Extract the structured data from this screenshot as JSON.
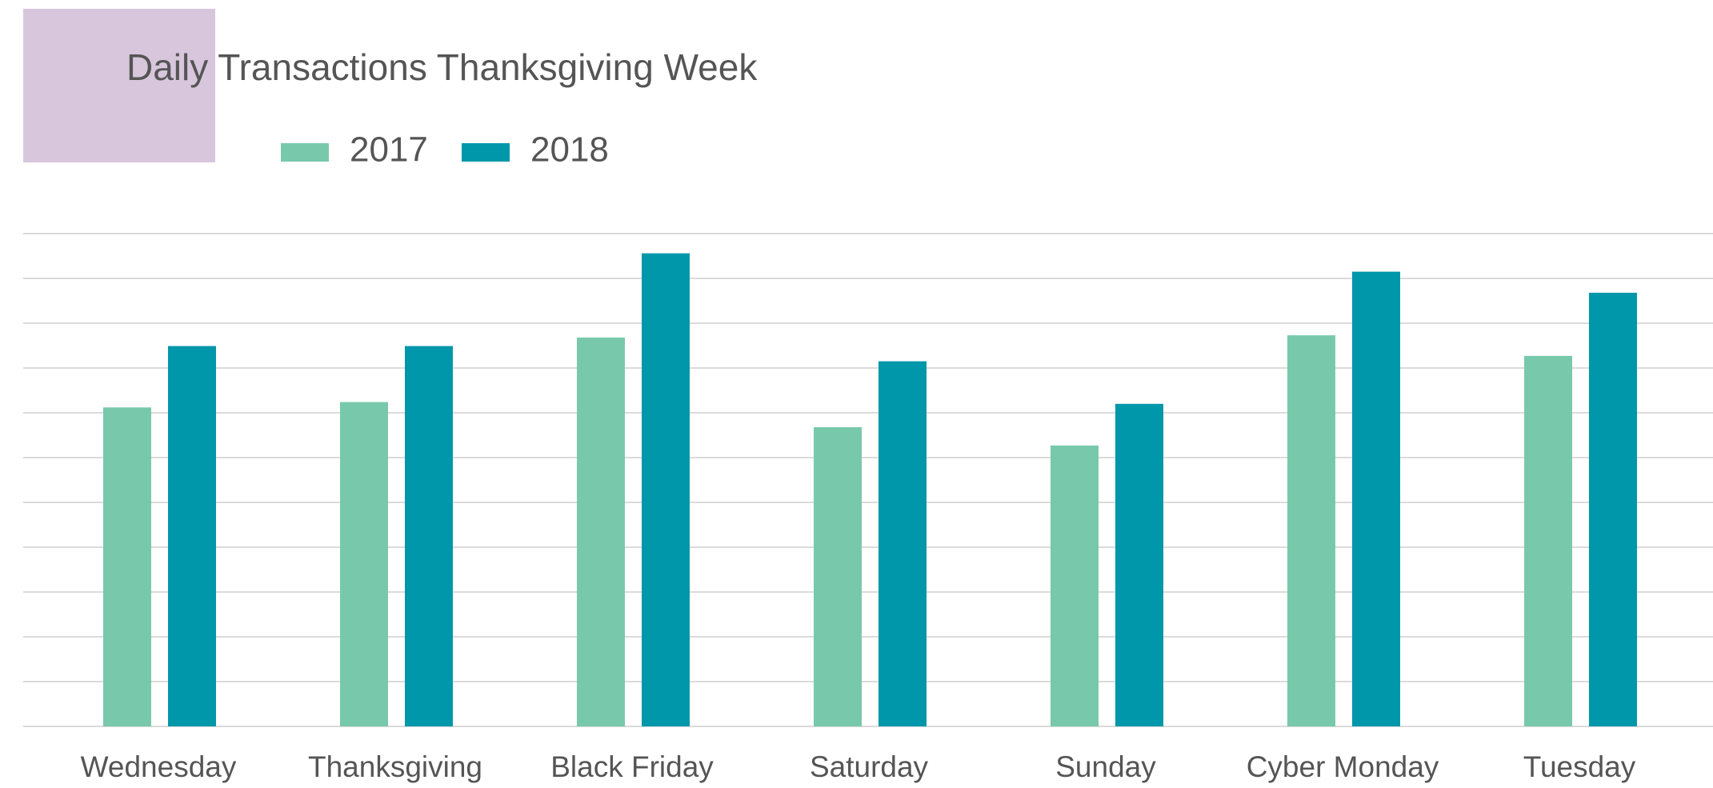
{
  "chart_data": {
    "type": "bar",
    "title": "Daily Transactions Thanksgiving Week",
    "categories": [
      "Wednesday",
      "Thanksgiving",
      "Black Friday",
      "Saturday",
      "Sunday",
      "Cyber Monday",
      "Tuesday"
    ],
    "series": [
      {
        "name": "2017",
        "color": "#78c9ab",
        "values": [
          7.12,
          7.24,
          8.68,
          6.68,
          6.27,
          8.73,
          8.27
        ]
      },
      {
        "name": "2018",
        "color": "#0097aa",
        "values": [
          8.49,
          8.49,
          10.56,
          8.15,
          7.2,
          10.15,
          9.68
        ]
      }
    ],
    "ylim": [
      0,
      11
    ],
    "yticks": [
      0,
      1,
      2,
      3,
      4,
      5,
      6,
      7,
      8,
      9,
      10,
      11
    ],
    "grid": true,
    "legend": "top"
  }
}
